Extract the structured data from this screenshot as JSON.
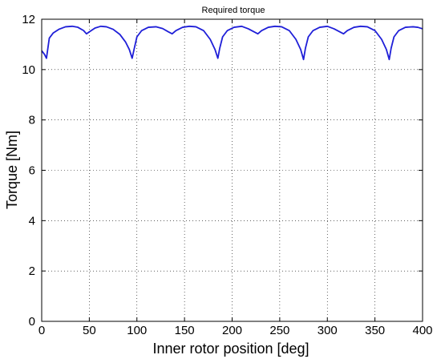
{
  "chart_data": {
    "type": "line",
    "title": "Required torque",
    "xlabel": "Inner rotor position [deg]",
    "ylabel": "Torque [Nm]",
    "xlim": [
      0,
      400
    ],
    "ylim": [
      0,
      12
    ],
    "xticks": [
      0,
      50,
      100,
      150,
      200,
      250,
      300,
      350,
      400
    ],
    "yticks": [
      0,
      2,
      4,
      6,
      8,
      10,
      12
    ],
    "grid": true,
    "line_color": "#1f1fd8",
    "series": [
      {
        "x": [
          0,
          3,
          5,
          8,
          12,
          18,
          25,
          32,
          38,
          44,
          47,
          50,
          56,
          62,
          68,
          75,
          82,
          88,
          92,
          95,
          97,
          100,
          105,
          112,
          120,
          127,
          133,
          137,
          141,
          148,
          155,
          162,
          170,
          177,
          182,
          185,
          187,
          190,
          195,
          202,
          210,
          217,
          223,
          227,
          231,
          238,
          245,
          252,
          260,
          267,
          272,
          275,
          277,
          280,
          285,
          292,
          300,
          307,
          313,
          317,
          321,
          328,
          335,
          342,
          350,
          357,
          362,
          365,
          367,
          370,
          375,
          382,
          390,
          395,
          400
        ],
        "y": [
          10.75,
          10.6,
          10.45,
          11.25,
          11.45,
          11.6,
          11.7,
          11.72,
          11.68,
          11.55,
          11.42,
          11.5,
          11.65,
          11.72,
          11.7,
          11.6,
          11.4,
          11.1,
          10.8,
          10.45,
          10.8,
          11.3,
          11.55,
          11.68,
          11.7,
          11.63,
          11.5,
          11.42,
          11.55,
          11.68,
          11.72,
          11.7,
          11.55,
          11.2,
          10.8,
          10.45,
          10.85,
          11.3,
          11.55,
          11.68,
          11.72,
          11.62,
          11.5,
          11.42,
          11.55,
          11.68,
          11.72,
          11.7,
          11.55,
          11.2,
          10.8,
          10.4,
          10.85,
          11.3,
          11.55,
          11.68,
          11.72,
          11.62,
          11.5,
          11.42,
          11.55,
          11.68,
          11.72,
          11.7,
          11.55,
          11.2,
          10.8,
          10.4,
          10.85,
          11.3,
          11.55,
          11.68,
          11.7,
          11.68,
          11.62
        ]
      }
    ]
  }
}
